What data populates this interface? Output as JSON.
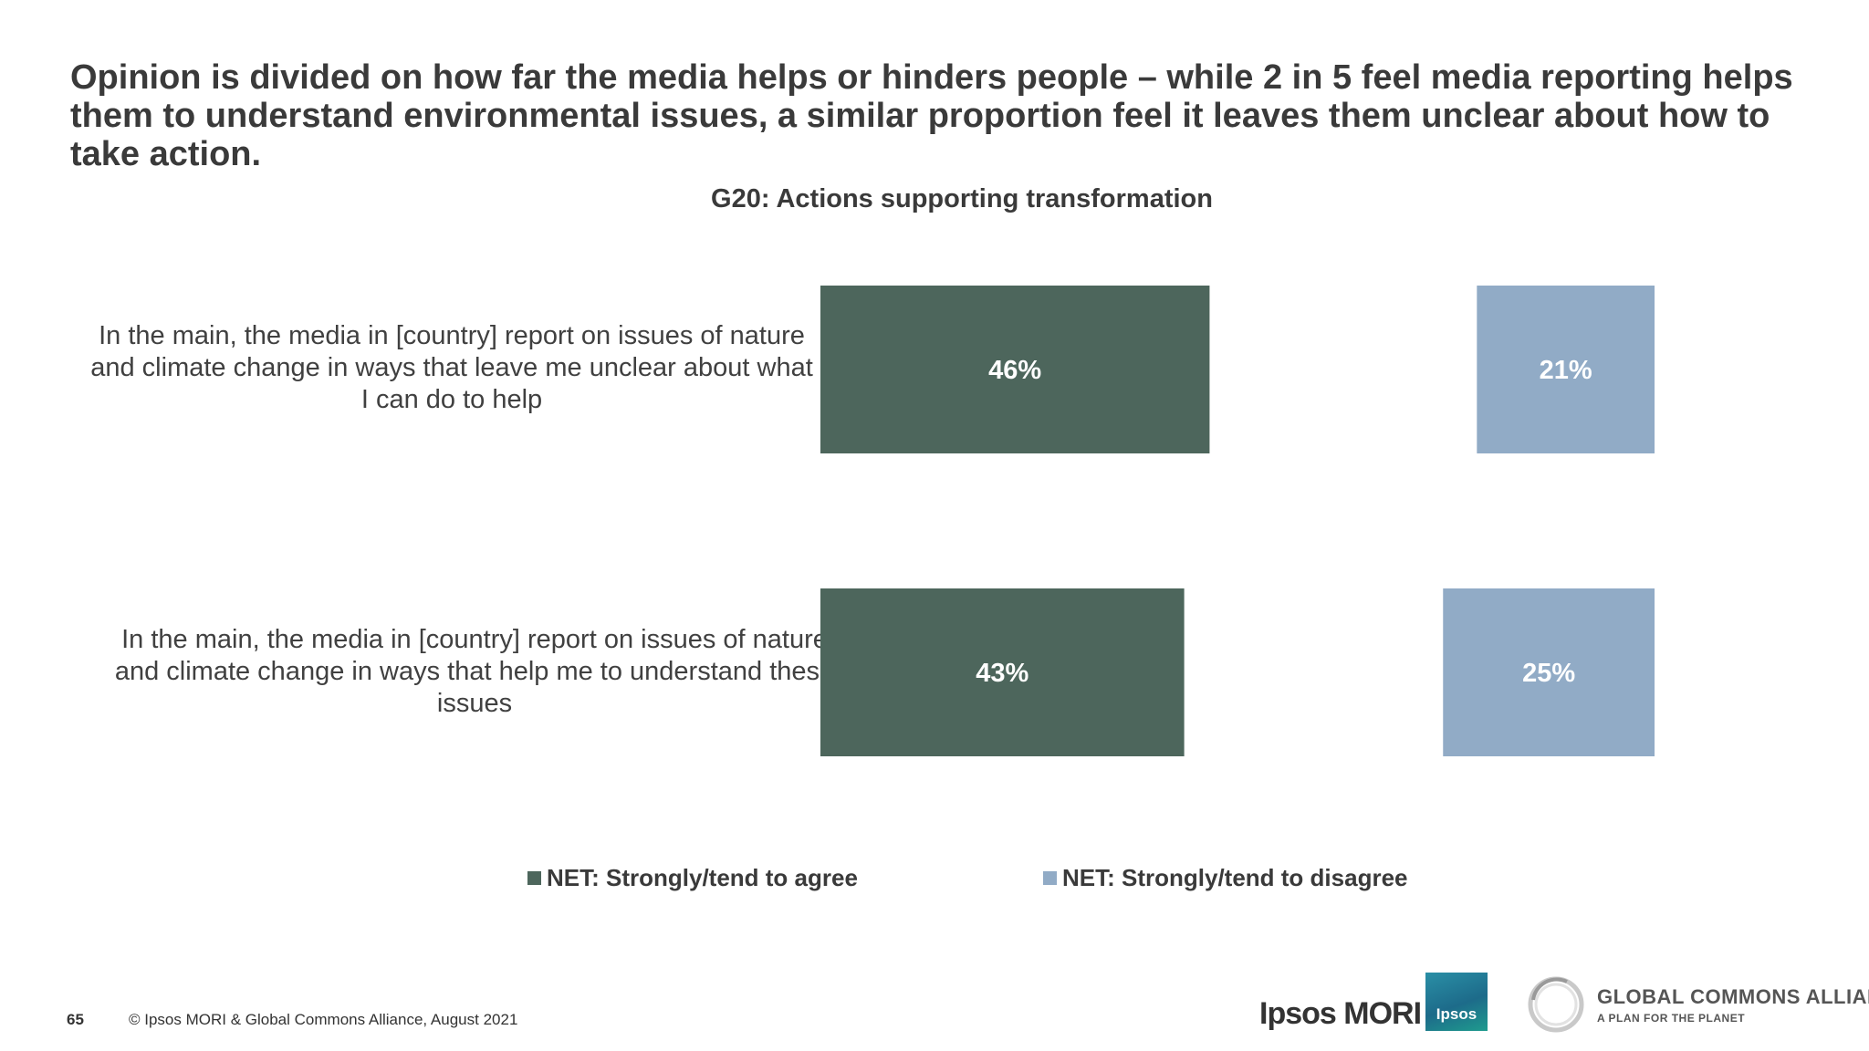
{
  "headline": "Opinion is divided on how far the media helps or hinders people – while 2 in 5 feel media reporting helps them to understand environmental issues, a similar proportion feel it leaves them unclear about how to take action.",
  "chart_data": {
    "type": "bar",
    "orientation": "horizontal",
    "title": "G20: Actions supporting transformation",
    "categories": [
      "In the main, the media in [country] report on issues of nature and climate change in ways that leave me unclear about what I can do to help",
      "In the main, the media in [country] report on issues of nature and climate change in ways that help me to understand these issues"
    ],
    "series": [
      {
        "name": "NET: Strongly/tend to agree",
        "values": [
          46,
          43
        ],
        "labels": [
          "46%",
          "43%"
        ],
        "color": "#4d665c"
      },
      {
        "name": "NET: Strongly/tend to disagree",
        "values": [
          21,
          25
        ],
        "labels": [
          "21%",
          "25%"
        ],
        "color": "#91abc6"
      }
    ],
    "legend_position": "bottom",
    "grid": false
  },
  "footer": {
    "page_number": "65",
    "copyright": "© Ipsos MORI & Global Commons Alliance, August 2021"
  },
  "logos": {
    "ipsos_mori": "Ipsos MORI",
    "ipsos": "Ipsos",
    "gca_name": "GLOBAL COMMONS ALLIANCE",
    "gca_tagline": "A PLAN FOR THE PLANET"
  }
}
